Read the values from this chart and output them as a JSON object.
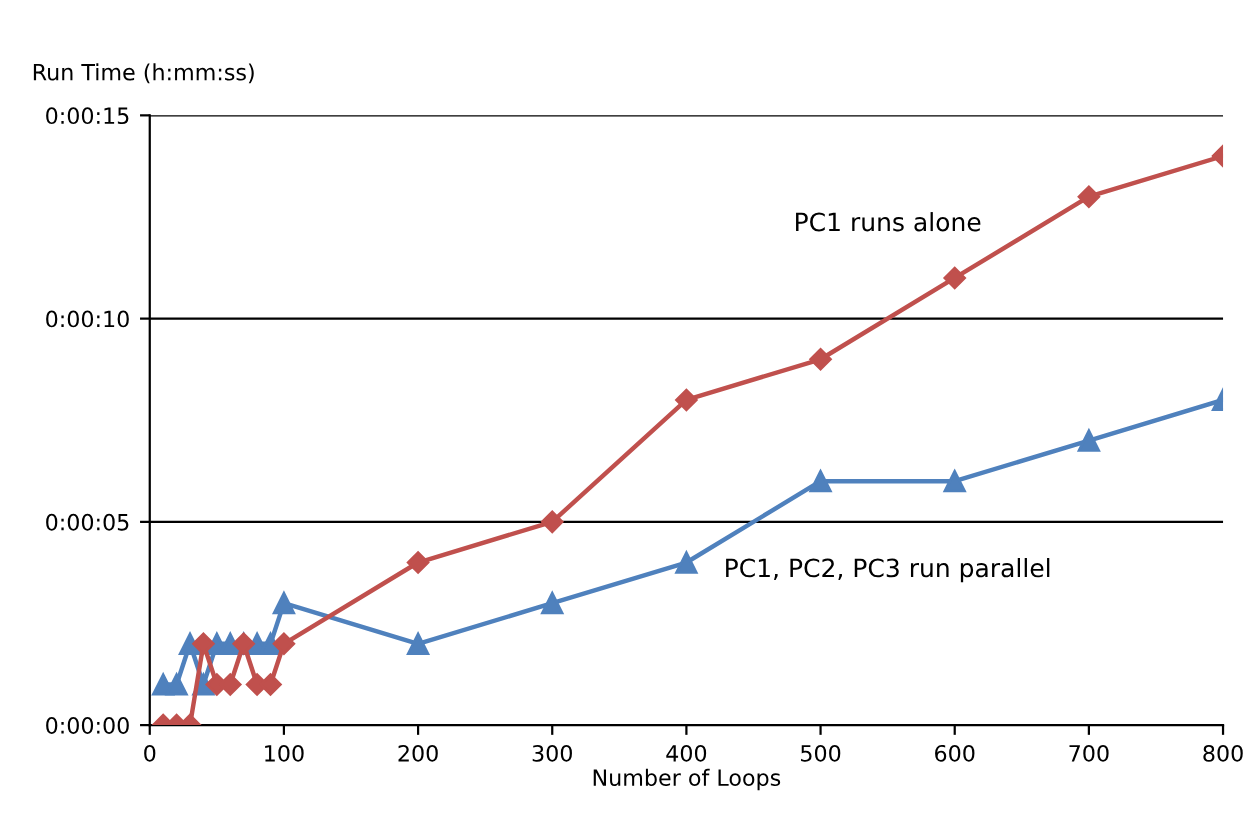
{
  "chart_data": {
    "type": "line",
    "ylabel": "Run Time (h:mm:ss)",
    "xlabel": "Number of Loops",
    "xlim": [
      0,
      800
    ],
    "xticks": [
      0,
      100,
      200,
      300,
      400,
      500,
      600,
      700,
      800
    ],
    "ylim": [
      0,
      15
    ],
    "yticks": [
      {
        "value": 0,
        "label": "0:00:00"
      },
      {
        "value": 5,
        "label": "0:00:05"
      },
      {
        "value": 10,
        "label": "0:00:10"
      },
      {
        "value": 15,
        "label": "0:00:15"
      }
    ],
    "grid": "y",
    "series": [
      {
        "name": "PC1 runs alone",
        "color": "#c0504d",
        "marker": "diamond",
        "x": [
          10,
          20,
          30,
          40,
          50,
          60,
          70,
          80,
          90,
          100,
          200,
          300,
          400,
          500,
          600,
          700,
          800
        ],
        "values": [
          0,
          0,
          0,
          2,
          1,
          1,
          2,
          1,
          1,
          2,
          4,
          5,
          8,
          9,
          11,
          13,
          14
        ]
      },
      {
        "name": "PC1, PC2, PC3 run parallel",
        "color": "#4f81bd",
        "marker": "triangle",
        "x": [
          10,
          20,
          30,
          40,
          50,
          60,
          70,
          80,
          90,
          100,
          200,
          300,
          400,
          500,
          600,
          700,
          800
        ],
        "values": [
          1,
          1,
          2,
          1,
          2,
          2,
          2,
          2,
          2,
          3,
          2,
          3,
          4,
          6,
          6,
          7,
          8
        ]
      }
    ]
  }
}
